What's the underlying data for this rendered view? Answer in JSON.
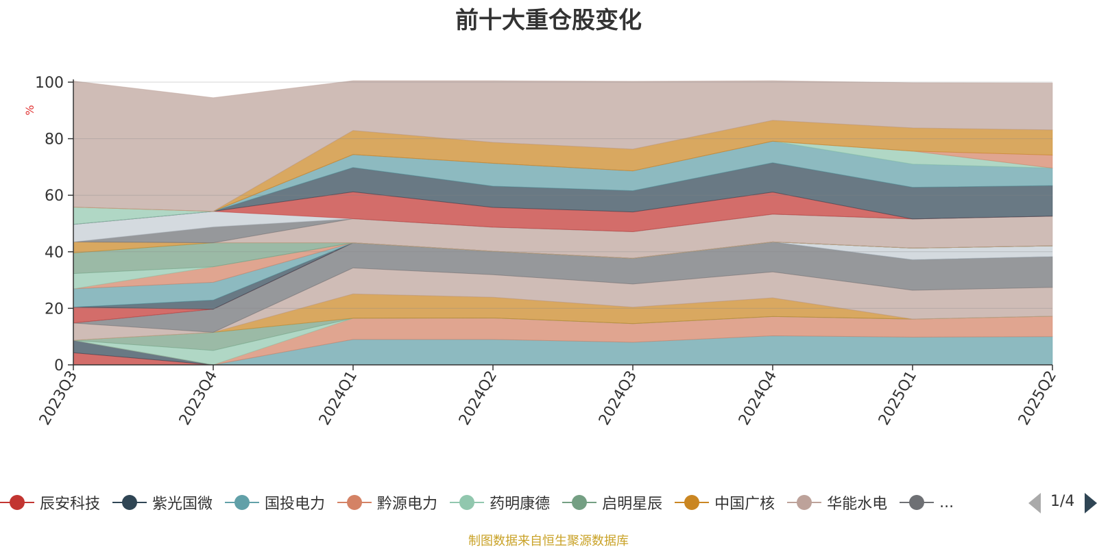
{
  "chart_data": {
    "type": "area",
    "title": "前十大重仓股变化",
    "ylabel": "%",
    "ylim": [
      0,
      100
    ],
    "yticks": [
      0,
      20,
      40,
      60,
      80,
      100
    ],
    "x": [
      "2023Q3",
      "2023Q4",
      "2024Q1",
      "2024Q2",
      "2024Q3",
      "2024Q4",
      "2025Q1",
      "2025Q2"
    ],
    "grid": true,
    "stacked": true,
    "series": [
      {
        "name": "辰安科技",
        "color": "#c23531",
        "values": [
          4.3,
          0,
          0,
          0,
          0,
          0,
          0,
          0
        ]
      },
      {
        "name": "紫光国微",
        "color": "#2f4554",
        "values": [
          4.4,
          0,
          0,
          0,
          0,
          0,
          0,
          0
        ]
      },
      {
        "name": "国投电力",
        "color": "#61a0a8",
        "values": [
          0,
          0,
          9.0,
          9.0,
          8.0,
          10.3,
          9.8,
          10.0
        ]
      },
      {
        "name": "黔源电力",
        "color": "#d48265",
        "values": [
          0,
          0,
          7.5,
          7.6,
          6.6,
          6.8,
          6.4,
          7.2
        ]
      },
      {
        "name": "药明康德",
        "color": "#91c7ae",
        "values": [
          0,
          5.1,
          0,
          0,
          0,
          0,
          0,
          0
        ]
      },
      {
        "name": "启明星辰",
        "color": "#749f83",
        "values": [
          0,
          6.4,
          0,
          0,
          0,
          0,
          0,
          0
        ]
      },
      {
        "name": "中国广核",
        "color": "#ca8622",
        "values": [
          0,
          0,
          8.6,
          7.3,
          5.8,
          6.6,
          0,
          0
        ]
      },
      {
        "name": "华能水电",
        "color": "#bda29a",
        "values": [
          6.1,
          0,
          9.2,
          8.0,
          8.2,
          9.2,
          10.2,
          10.2
        ]
      },
      {
        "name": "",
        "color": "#6e7074",
        "values": [
          0,
          8.2,
          8.9,
          8.3,
          9.1,
          10.6,
          10.8,
          10.9
        ]
      },
      {
        "name": "",
        "color": "#546570",
        "values": [
          0,
          0,
          0,
          0,
          0,
          0,
          0,
          0
        ]
      },
      {
        "name": "",
        "color": "#c4ccd3",
        "values": [
          0,
          0,
          0,
          0,
          0,
          0,
          4.1,
          3.8
        ]
      },
      {
        "name": "",
        "color": "#c23531",
        "values": [
          5.6,
          0,
          0,
          0,
          0,
          0,
          0,
          0
        ]
      },
      {
        "name": "",
        "color": "#2f4554",
        "values": [
          0,
          3.2,
          0,
          0,
          0,
          0,
          0,
          0
        ]
      },
      {
        "name": "",
        "color": "#61a0a8",
        "values": [
          6.5,
          6.3,
          0,
          0,
          0,
          0,
          0,
          0
        ]
      },
      {
        "name": "",
        "color": "#d48265",
        "values": [
          0,
          5.5,
          0,
          0,
          0,
          0,
          0,
          0
        ]
      },
      {
        "name": "",
        "color": "#91c7ae",
        "values": [
          5.4,
          0,
          0,
          0,
          0,
          0,
          0,
          0
        ]
      },
      {
        "name": "",
        "color": "#749f83",
        "values": [
          7.3,
          8.5,
          0,
          0,
          0,
          0,
          0,
          0
        ]
      },
      {
        "name": "",
        "color": "#ca8622",
        "values": [
          3.9,
          0,
          0,
          0,
          0,
          0,
          0,
          0
        ]
      },
      {
        "name": "",
        "color": "#bda29a",
        "values": [
          0,
          0,
          8.5,
          8.5,
          9.4,
          9.8,
          10.3,
          10.5
        ]
      },
      {
        "name": "",
        "color": "#6e7074",
        "values": [
          0,
          5.6,
          0,
          0,
          0,
          0,
          0,
          0
        ]
      },
      {
        "name": "",
        "color": "#c4ccd3",
        "values": [
          6.2,
          5.5,
          0,
          0,
          0,
          0,
          0,
          0
        ]
      },
      {
        "name": "",
        "color": "#c23531",
        "values": [
          0,
          0,
          9.5,
          7.0,
          7.0,
          7.8,
          0,
          0
        ]
      },
      {
        "name": "",
        "color": "#2f4554",
        "values": [
          0,
          0,
          8.6,
          7.5,
          7.5,
          10.4,
          11.2,
          10.8
        ]
      },
      {
        "name": "",
        "color": "#61a0a8",
        "values": [
          0,
          0,
          4.6,
          8.1,
          7.0,
          7.6,
          8.2,
          6.2
        ]
      },
      {
        "name": "",
        "color": "#91c7ae",
        "values": [
          6.1,
          0,
          0,
          0,
          0,
          0,
          4.6,
          0
        ]
      },
      {
        "name": "",
        "color": "#d48265",
        "values": [
          0,
          0,
          0,
          0,
          0,
          0,
          0,
          4.6
        ]
      },
      {
        "name": "",
        "color": "#ca8622",
        "values": [
          0,
          0,
          8.5,
          7.4,
          7.7,
          7.4,
          8.2,
          8.9
        ]
      },
      {
        "name": "",
        "color": "#bda29a",
        "values": [
          44.6,
          40.2,
          17.6,
          21.8,
          24.0,
          14.0,
          16.0,
          16.6
        ]
      }
    ],
    "legend": {
      "items": [
        "辰安科技",
        "紫光国微",
        "国投电力",
        "黔源电力",
        "药明康德",
        "启明星辰",
        "中国广核",
        "华能水电",
        "..."
      ],
      "page": "1/4",
      "placement": "bottom"
    },
    "source_note": "制图数据来自恒生聚源数据库"
  }
}
